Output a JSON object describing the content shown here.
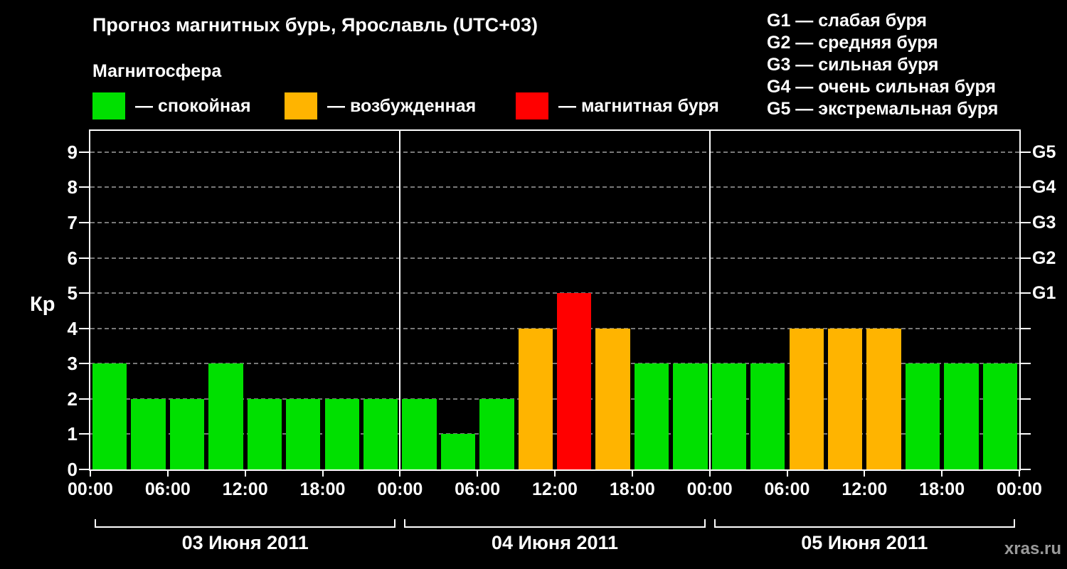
{
  "chart_data": {
    "type": "bar",
    "title": "Прогноз магнитных бурь, Ярославль (UTC+03)",
    "ylabel": "Кр",
    "ylim": [
      0,
      9.6
    ],
    "yticks": [
      0,
      1,
      2,
      3,
      4,
      5,
      6,
      7,
      8,
      9
    ],
    "right_axis": [
      {
        "value": 5,
        "label": "G1"
      },
      {
        "value": 6,
        "label": "G2"
      },
      {
        "value": 7,
        "label": "G3"
      },
      {
        "value": 8,
        "label": "G4"
      },
      {
        "value": 9,
        "label": "G5"
      }
    ],
    "x_tick_labels": [
      "00:00",
      "06:00",
      "12:00",
      "18:00",
      "00:00",
      "06:00",
      "12:00",
      "18:00",
      "00:00",
      "06:00",
      "12:00",
      "18:00",
      "00:00"
    ],
    "slot_hours": 3,
    "grid": "horizontal-dashed",
    "days": [
      {
        "date": "03 Июня 2011",
        "values": [
          3,
          2,
          2,
          3,
          2,
          2,
          2,
          2
        ]
      },
      {
        "date": "04 Июня 2011",
        "values": [
          2,
          1,
          2,
          4,
          5,
          4,
          3,
          3
        ]
      },
      {
        "date": "05 Июня 2011",
        "values": [
          3,
          3,
          4,
          4,
          4,
          3,
          3,
          3
        ]
      }
    ],
    "colors": {
      "quiet": "#00e000",
      "active": "#ffb400",
      "storm": "#ff0000"
    },
    "thresholds": {
      "quiet_max": 3,
      "active_max": 4
    }
  },
  "legend": {
    "heading": "Магнитосфера",
    "items": [
      {
        "label": "— спокойная",
        "color": "#00e000"
      },
      {
        "label": "— возбужденная",
        "color": "#ffb400"
      },
      {
        "label": "— магнитная буря",
        "color": "#ff0000"
      }
    ]
  },
  "g_legend": {
    "items": [
      {
        "label": "G1 — слабая буря"
      },
      {
        "label": "G2 — средняя буря"
      },
      {
        "label": "G3 — сильная буря"
      },
      {
        "label": "G4 — очень сильная буря"
      },
      {
        "label": "G5 — экстремальная буря"
      }
    ]
  },
  "watermark": "xras.ru"
}
